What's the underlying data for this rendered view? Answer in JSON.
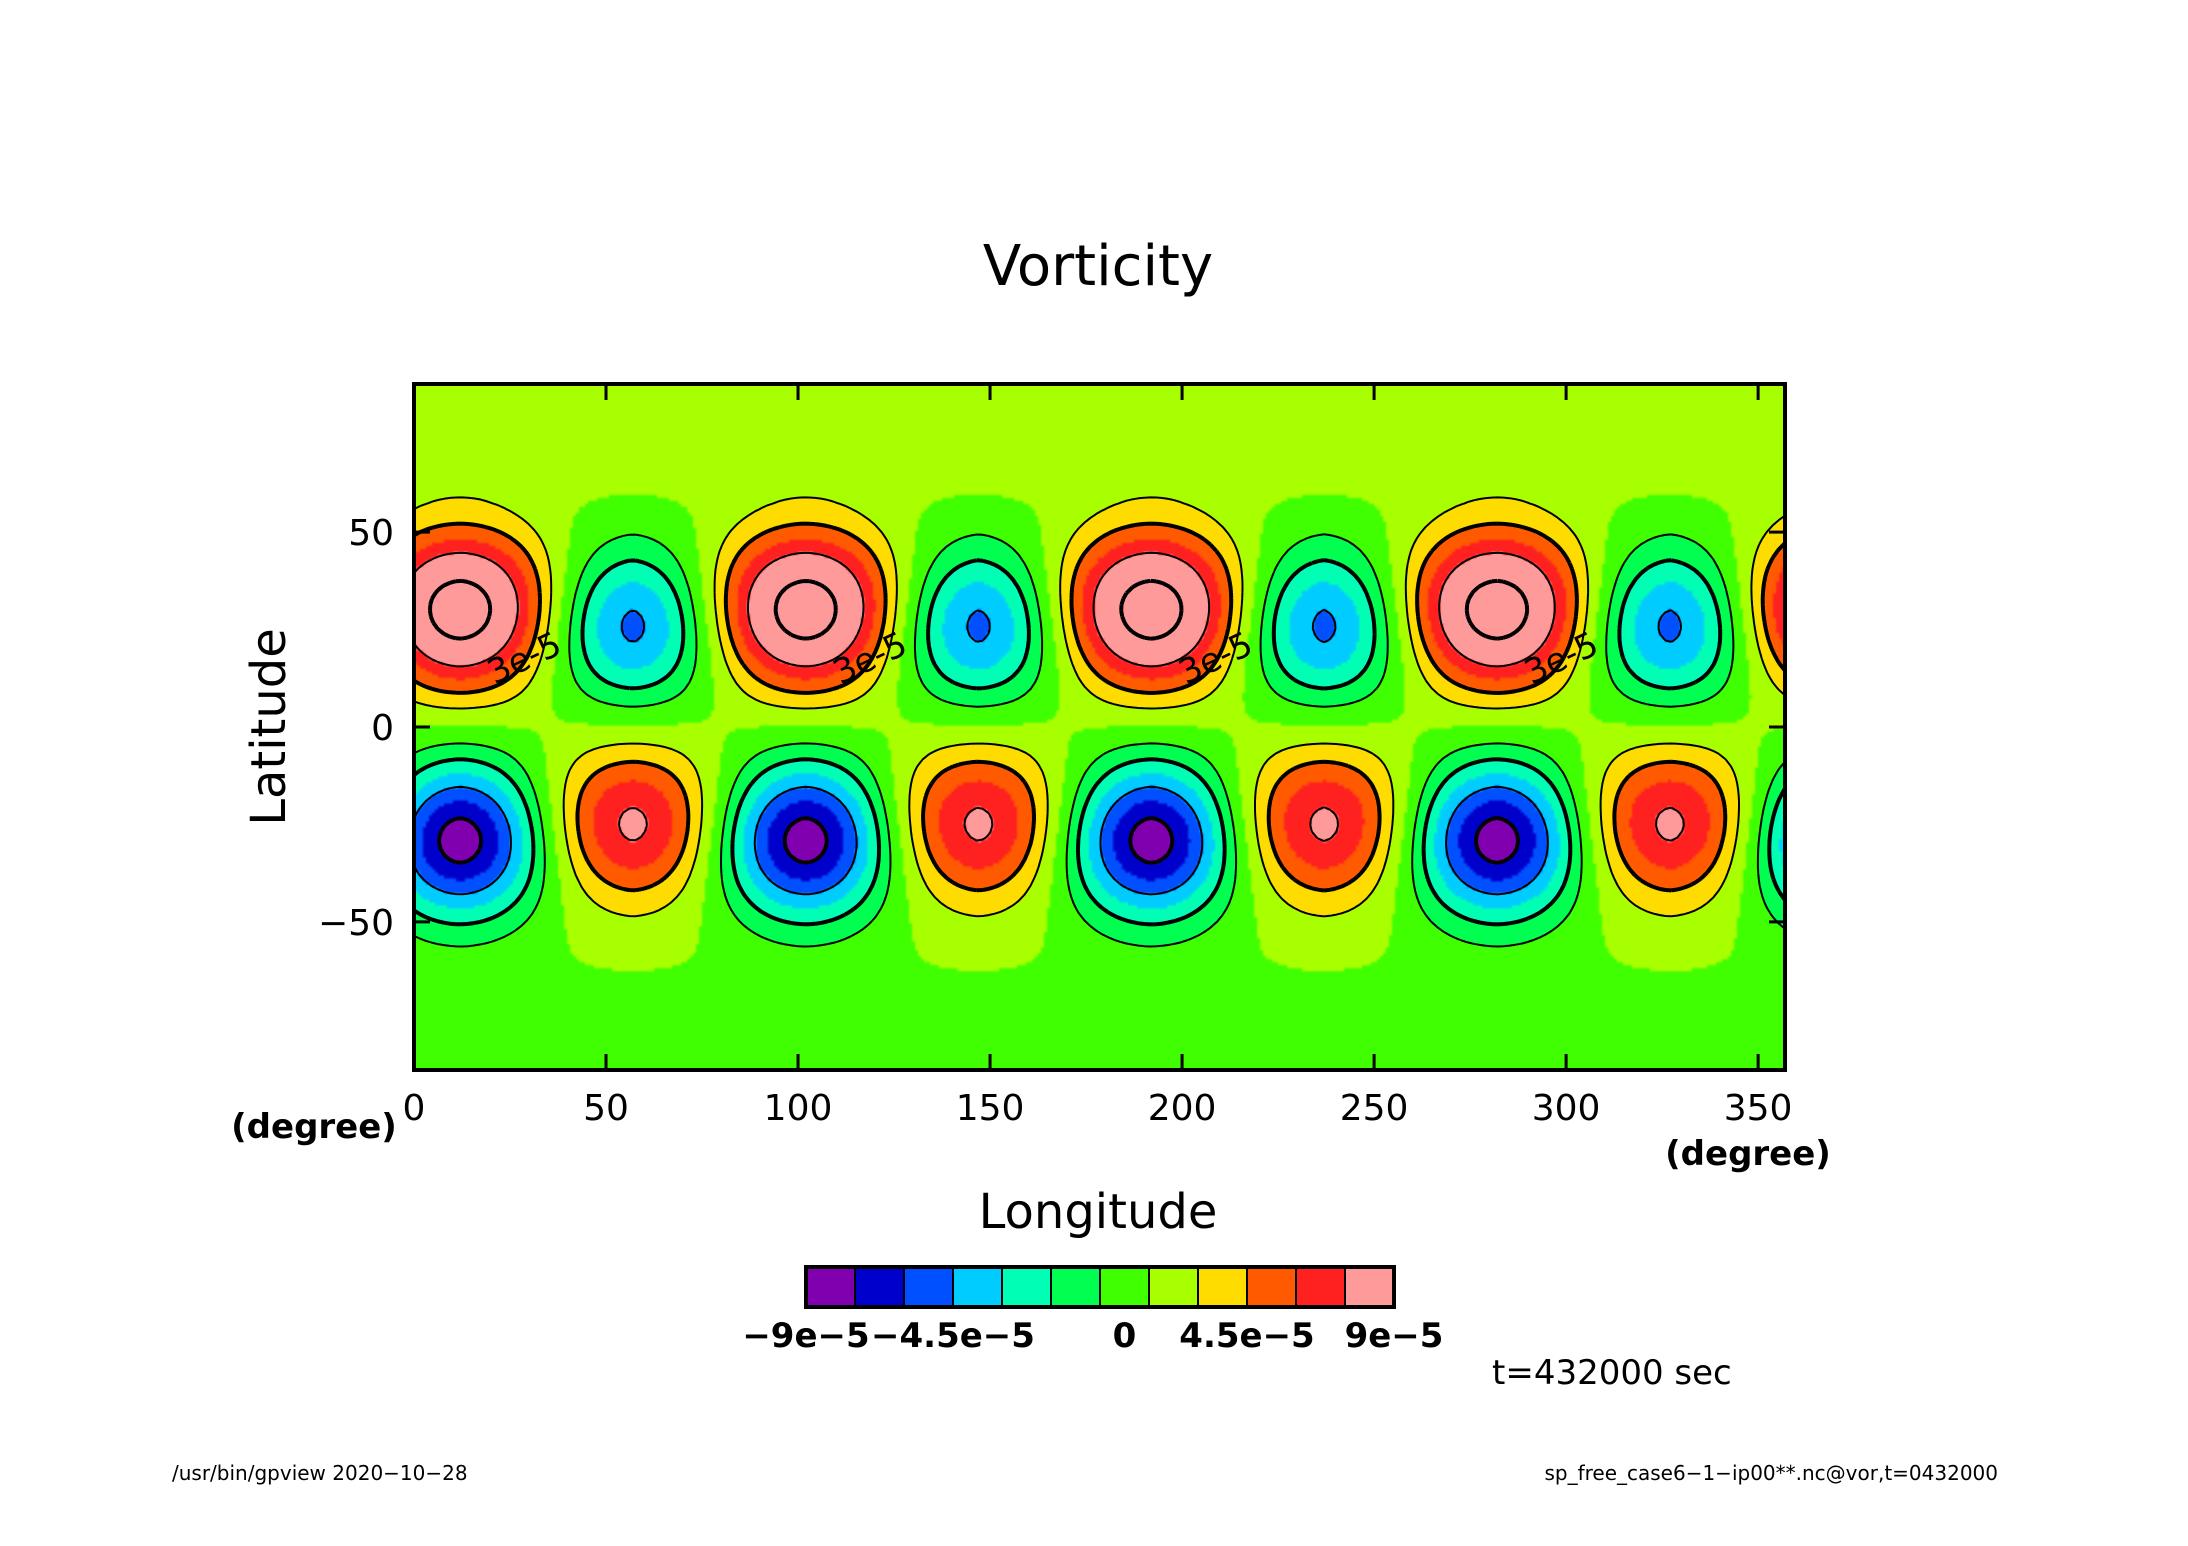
{
  "chart_data": {
    "type": "heatmap",
    "title": "Vorticity",
    "xlabel": "Longitude",
    "ylabel": "Latitude",
    "x_unit": "(degree)",
    "y_unit": "(degree)",
    "xlim": [
      0,
      357
    ],
    "ylim": [
      -88,
      88
    ],
    "x_ticks": [
      0,
      50,
      100,
      150,
      200,
      250,
      300,
      350
    ],
    "y_ticks": [
      -50,
      0,
      50
    ],
    "time_label": "t=432000 sec",
    "contour_label": "3e-5",
    "wavenumber": 4,
    "features": [
      {
        "hemisphere": "north",
        "type": "positive",
        "lon": 12,
        "lat": 30,
        "peak": 0.000105
      },
      {
        "hemisphere": "north",
        "type": "negative",
        "lon": 57,
        "lat": 26,
        "peak": -6.6e-05
      },
      {
        "hemisphere": "south",
        "type": "negative",
        "lon": 12,
        "lat": -29,
        "peak": -0.0001
      },
      {
        "hemisphere": "south",
        "type": "positive",
        "lon": 57,
        "lat": -25,
        "peak": 6.5e-05
      }
    ],
    "colorbar": {
      "levels": [
        -0.000105,
        -9e-05,
        -7.5e-05,
        -6e-05,
        -4.5e-05,
        -3e-05,
        -1.5e-05,
        0,
        1.5e-05,
        3e-05,
        4.5e-05,
        6e-05,
        7.5e-05,
        9e-05,
        0.000105
      ],
      "colors": [
        "#8000b0",
        "#0000cc",
        "#0050ff",
        "#00ccff",
        "#00ffb4",
        "#00ff50",
        "#40ff00",
        "#a8ff00",
        "#ffdc00",
        "#ff5a00",
        "#ff2020",
        "#ff9a9a"
      ],
      "tick_labels": [
        "−9e−5",
        "−4.5e−5",
        "0",
        "4.5e−5",
        "9e−5"
      ]
    }
  },
  "footer": {
    "left": "/usr/bin/gpview   2020−10−28",
    "right": "sp_free_case6−1−ip00**.nc@vor,t=0432000"
  }
}
